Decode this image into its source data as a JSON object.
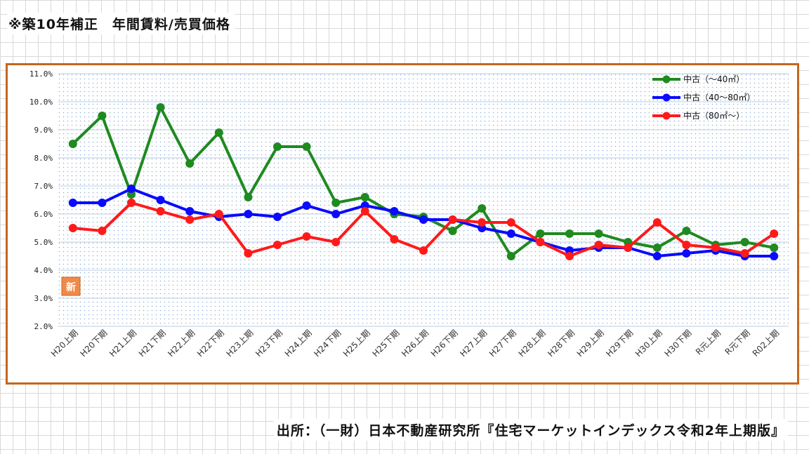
{
  "header": {
    "title": "※築10年補正　年間賃料/売買価格"
  },
  "footer": {
    "source": "出所：（一財）日本不動産研究所『住宅マーケットインデックス令和2年上期版』"
  },
  "badge": {
    "text": "新"
  },
  "chart_data": {
    "type": "line",
    "title": "",
    "xlabel": "",
    "ylabel": "",
    "ylim": [
      2.0,
      11.0
    ],
    "y_ticks": [
      "2.0%",
      "3.0%",
      "4.0%",
      "5.0%",
      "6.0%",
      "7.0%",
      "8.0%",
      "9.0%",
      "10.0%",
      "11.0%"
    ],
    "categories": [
      "H20上期",
      "H20下期",
      "H21上期",
      "H21下期",
      "H22上期",
      "H22下期",
      "H23上期",
      "H23下期",
      "H24上期",
      "H24下期",
      "H25上期",
      "H25下期",
      "H26上期",
      "H26下期",
      "H27上期",
      "H27下期",
      "H28上期",
      "H28下期",
      "H29上期",
      "H29下期",
      "H30上期",
      "H30下期",
      "R元上期",
      "R元下期",
      "R02上期"
    ],
    "grid": true,
    "legend_position": "top-right",
    "series": [
      {
        "name": "中古（～40㎡）",
        "color": "#1f8a1f",
        "values": [
          8.5,
          9.5,
          6.7,
          9.8,
          7.8,
          8.9,
          6.6,
          8.4,
          8.4,
          6.4,
          6.6,
          6.0,
          5.9,
          5.4,
          6.2,
          4.5,
          5.3,
          5.3,
          5.3,
          5.0,
          4.8,
          5.4,
          4.9,
          5.0,
          4.8
        ]
      },
      {
        "name": "中古（40～80㎡）",
        "color": "#0a0aff",
        "values": [
          6.4,
          6.4,
          6.9,
          6.5,
          6.1,
          5.9,
          6.0,
          5.9,
          6.3,
          6.0,
          6.3,
          6.1,
          5.8,
          5.8,
          5.5,
          5.3,
          5.0,
          4.7,
          4.8,
          4.8,
          4.5,
          4.6,
          4.7,
          4.5,
          4.5
        ]
      },
      {
        "name": "中古（80㎡～）",
        "color": "#ff1a1a",
        "values": [
          5.5,
          5.4,
          6.4,
          6.1,
          5.8,
          6.0,
          4.6,
          4.9,
          5.2,
          5.0,
          6.1,
          5.1,
          4.7,
          5.8,
          5.7,
          5.7,
          5.0,
          4.5,
          4.9,
          4.8,
          5.7,
          4.9,
          4.8,
          4.6,
          5.3
        ]
      }
    ]
  }
}
